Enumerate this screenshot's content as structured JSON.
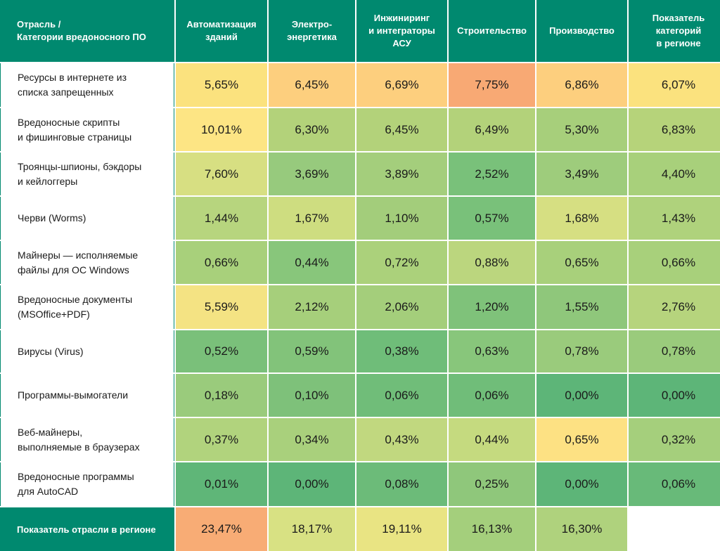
{
  "header": {
    "corner": "Отрасль /\nКатегории вредоносного ПО",
    "columns": [
      "Автоматизация\nзданий",
      "Электро-\nэнергетика",
      "Инжиниринг\nи интеграторы\nАСУ",
      "Строительство",
      "Производство",
      "Показатель\nкатегорий\nв регионе"
    ]
  },
  "rows": [
    {
      "label": "Ресурсы в интернете из\nсписка запрещенных",
      "values": [
        "5,65%",
        "6,45%",
        "6,69%",
        "7,75%",
        "6,86%",
        "6,07%"
      ],
      "colors": [
        "#fbe27e",
        "#fdcf7e",
        "#fdcf7e",
        "#f8a974",
        "#fdcf7e",
        "#fbe27e"
      ]
    },
    {
      "label": "Вредоносные скрипты\nи фишинговые страницы",
      "values": [
        "10,01%",
        "6,30%",
        "6,45%",
        "6,49%",
        "5,30%",
        "6,83%"
      ],
      "colors": [
        "#fde584",
        "#b3d27a",
        "#b3d27a",
        "#b3d27a",
        "#a7cf7b",
        "#b6d37a"
      ]
    },
    {
      "label": "Троянцы-шпионы, бэкдоры\nи кейлоггеры",
      "values": [
        "7,60%",
        "3,69%",
        "3,89%",
        "2,52%",
        "3,49%",
        "4,40%"
      ],
      "colors": [
        "#d7df82",
        "#97ca7d",
        "#a4ce7c",
        "#79c17a",
        "#9ecc7c",
        "#a8d07b"
      ]
    },
    {
      "label": "Черви (Worms)",
      "values": [
        "1,44%",
        "1,67%",
        "1,10%",
        "0,57%",
        "1,68%",
        "1,43%"
      ],
      "colors": [
        "#b7d57e",
        "#cedd80",
        "#a3cd7b",
        "#79c17a",
        "#d6df82",
        "#afd27c"
      ]
    },
    {
      "label": "Майнеры — исполняемые\nфайлы для ОС Windows",
      "values": [
        "0,66%",
        "0,44%",
        "0,72%",
        "0,88%",
        "0,65%",
        "0,66%"
      ],
      "colors": [
        "#a8d07b",
        "#88c67b",
        "#abd17b",
        "#bbd67e",
        "#a8d07b",
        "#a8d07b"
      ]
    },
    {
      "label": "Вредоносные документы\n(MSOffice+PDF)",
      "values": [
        "5,59%",
        "2,12%",
        "2,06%",
        "1,20%",
        "1,55%",
        "2,76%"
      ],
      "colors": [
        "#f4e383",
        "#a6cf7b",
        "#a4ce7b",
        "#7fc27a",
        "#8fc77b",
        "#b6d47d"
      ]
    },
    {
      "label": "Вирусы (Virus)",
      "values": [
        "0,52%",
        "0,59%",
        "0,38%",
        "0,63%",
        "0,78%",
        "0,78%"
      ],
      "colors": [
        "#7ac07a",
        "#82c37a",
        "#6fbd79",
        "#88c67b",
        "#9acb7c",
        "#9acb7c"
      ]
    },
    {
      "label": "Программы-вымогатели",
      "values": [
        "0,18%",
        "0,10%",
        "0,06%",
        "0,06%",
        "0,00%",
        "0,00%"
      ],
      "colors": [
        "#9acb7c",
        "#7ec17a",
        "#70bd79",
        "#70bd79",
        "#5db578",
        "#5db578"
      ]
    },
    {
      "label": "Веб-майнеры,\nвыполняемые в браузерах",
      "values": [
        "0,37%",
        "0,34%",
        "0,43%",
        "0,44%",
        "0,65%",
        "0,32%"
      ],
      "colors": [
        "#b1d37d",
        "#a9d07c",
        "#c1d87f",
        "#c5da7f",
        "#fde183",
        "#a5cf7c"
      ]
    },
    {
      "label": "Вредоносные программы\nдля AutoCAD",
      "values": [
        "0,01%",
        "0,00%",
        "0,08%",
        "0,25%",
        "0,00%",
        "0,06%"
      ],
      "colors": [
        "#5fb678",
        "#5db578",
        "#6cbb79",
        "#8fc77b",
        "#5db578",
        "#68ba79"
      ]
    }
  ],
  "footer": {
    "label": "Показатель отрасли в регионе",
    "values": [
      "23,47%",
      "18,17%",
      "19,11%",
      "16,13%",
      "16,30%",
      ""
    ],
    "colors": [
      "#f8ac75",
      "#d8e183",
      "#e9e483",
      "#a4cf7c",
      "#afd27d",
      "#ffffff"
    ]
  }
}
